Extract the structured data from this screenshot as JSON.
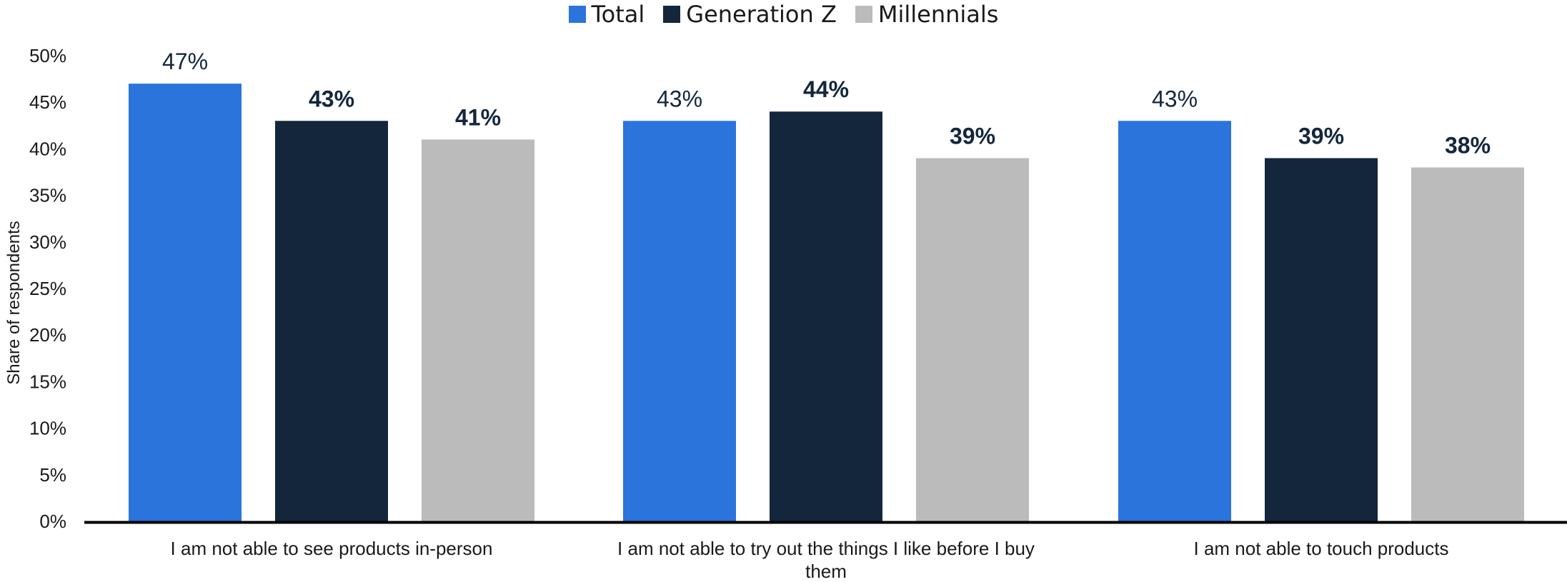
{
  "chart_data": {
    "type": "bar",
    "title": "",
    "xlabel": "",
    "ylabel": "Share of respondents",
    "ylim": [
      0,
      50
    ],
    "yticks": [
      0,
      5,
      10,
      15,
      20,
      25,
      30,
      35,
      40,
      45,
      50
    ],
    "tick_suffix": "%",
    "grid": false,
    "legend_position": "top-center",
    "categories": [
      [
        "I am not able to see products in-person"
      ],
      [
        "I am not able to try out the things I like before I buy",
        "them"
      ],
      [
        "I am not able to touch products"
      ]
    ],
    "series": [
      {
        "name": "Total",
        "values": [
          47,
          43,
          43
        ],
        "color": "#2a74dc",
        "label_bold": false
      },
      {
        "name": "Generation Z",
        "values": [
          43,
          44,
          39
        ],
        "color": "#13263c",
        "label_bold": true
      },
      {
        "name": "Millennials",
        "values": [
          41,
          39,
          38
        ],
        "color": "#bbbbbb",
        "label_bold": true
      }
    ],
    "value_labels": [
      [
        "47%",
        "43%",
        "43%"
      ],
      [
        "43%",
        "44%",
        "39%"
      ],
      [
        "41%",
        "39%",
        "38%"
      ]
    ]
  }
}
